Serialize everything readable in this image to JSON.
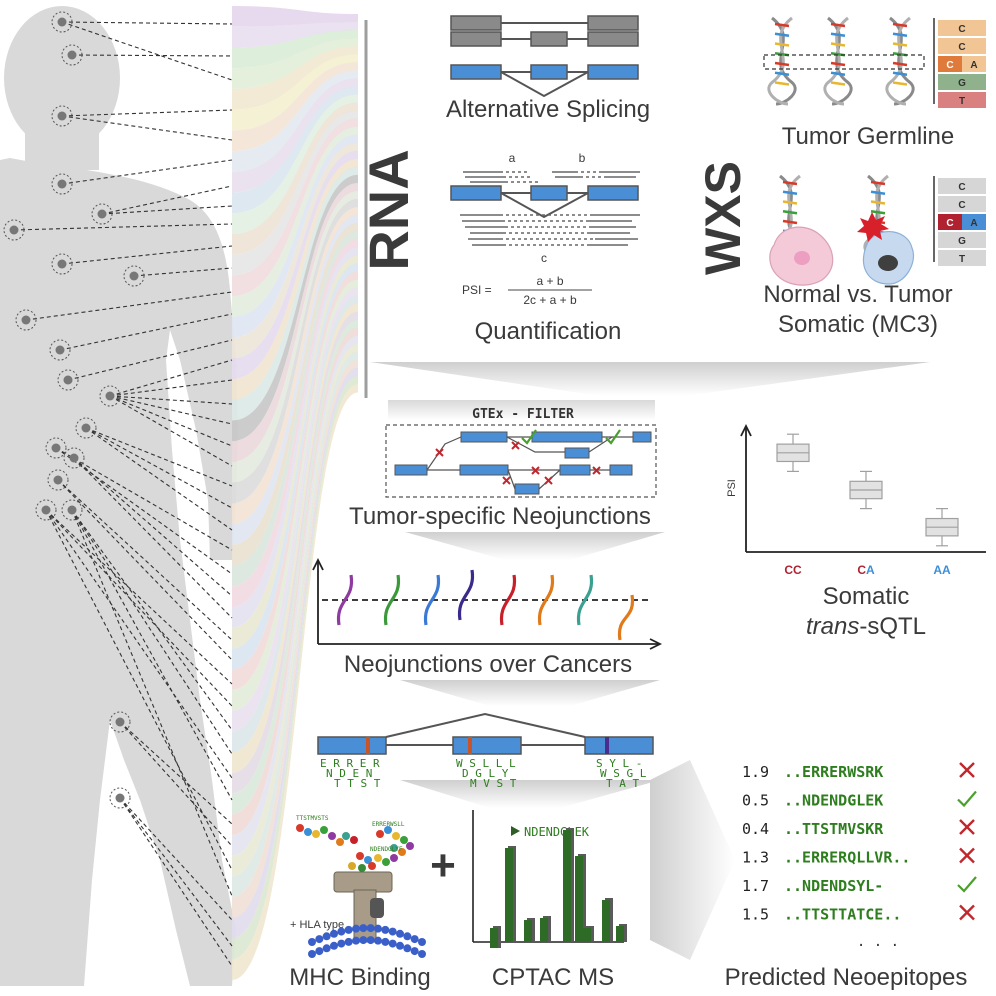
{
  "sections": {
    "alt_splicing": "Alternative Splicing",
    "quantification": "Quantification",
    "tumor_germline": "Tumor Germline",
    "normal_vs_tumor": "Normal vs. Tumor",
    "somatic_mc3": "Somatic (MC3)",
    "rna": "RNA",
    "wxs": "WXS",
    "gtex_filter": "GTEx - FILTER",
    "tumor_specific": "Tumor-specific Neojunctions",
    "neojunctions_over": "Neojunctions over Cancers",
    "somatic": "Somatic",
    "trans_sqtl_italic": "trans",
    "trans_sqtl_rest": "-sQTL",
    "mhc_binding": "MHC Binding",
    "cptac_ms": "CPTAC MS",
    "predicted": "Predicted Neoepitopes"
  },
  "quant": {
    "a": "a",
    "b": "b",
    "c": "c",
    "psi_label": "PSI =",
    "numerator": "a + b",
    "denominator": "2c + a + b"
  },
  "germline_bases": [
    "C",
    "C",
    "C",
    "A",
    "G",
    "T"
  ],
  "somatic_bases": [
    "C",
    "C",
    "C",
    "A",
    "G",
    "T"
  ],
  "boxplot": {
    "ylabel": "PSI",
    "groups": [
      {
        "label_a": "CC",
        "label_b": "",
        "median": 0.8
      },
      {
        "label_a": "C",
        "label_b": "A",
        "median": 0.5
      },
      {
        "label_a": "",
        "label_b": "AA",
        "median": 0.2
      }
    ]
  },
  "peptides_under_exons": {
    "exon1": [
      "E R R E R",
      "N D E N",
      "T T S T"
    ],
    "exon2": [
      "W S L L L",
      "D G L Y",
      "M V S T"
    ],
    "exon3": [
      "S Y L -",
      "W S G L",
      "T A T"
    ]
  },
  "mhc": {
    "pep1": "TTSTMVSTS",
    "pep2": "ERRERWSLL",
    "pep3": "NDENDGLYF",
    "hla": "+ HLA type",
    "plus": "+"
  },
  "ms": {
    "peptide": "NDENDGLEK"
  },
  "neoepitopes": [
    {
      "score": "1.9",
      "peptide": "..ERRERWSRK",
      "valid": false
    },
    {
      "score": "0.5",
      "peptide": "..NDENDGLEK",
      "valid": true
    },
    {
      "score": "0.4",
      "peptide": "..TTSTMVSKR",
      "valid": false
    },
    {
      "score": "1.3",
      "peptide": "..ERRERQLLVR..",
      "valid": false
    },
    {
      "score": "1.7",
      "peptide": "..NDENDSYL-",
      "valid": true
    },
    {
      "score": "1.5",
      "peptide": "..TTSTTATCE..",
      "valid": false
    }
  ],
  "ellipsis": ". . .",
  "colors": {
    "exon_blue": "#4a8fd6",
    "intron_gray": "#555555",
    "check_green": "#4aa02c",
    "cross_red": "#c0282e",
    "peptide_green": "#2e7d1f",
    "body_gray": "#d9d9d9",
    "label_red": "#b02230",
    "label_blue": "#3d8fd8"
  }
}
